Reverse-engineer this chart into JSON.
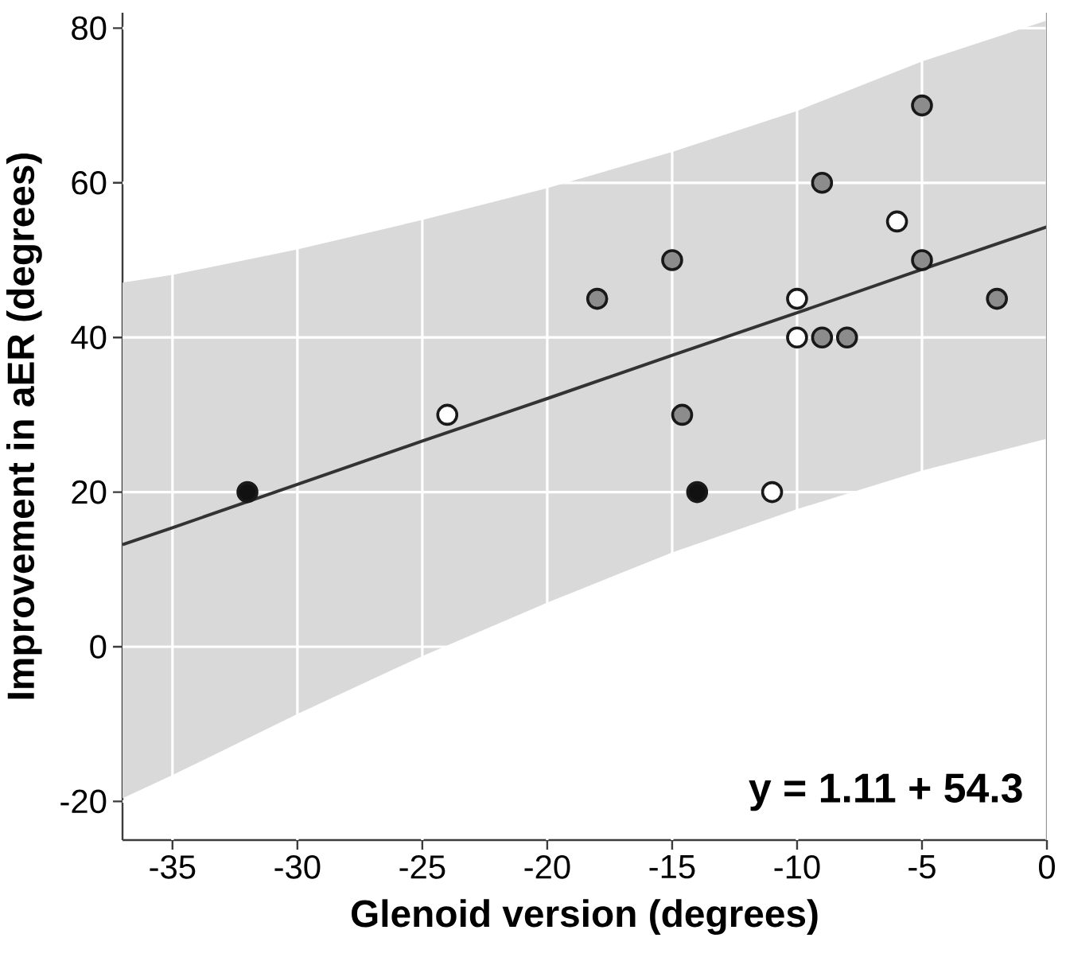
{
  "chart_data": {
    "type": "scatter",
    "xlabel": "Glenoid version (degrees)",
    "ylabel": "Improvement in aER (degrees)",
    "annotations": [
      "y = 1.11 + 54.3"
    ],
    "xlim": [
      -37,
      0
    ],
    "ylim": [
      -25,
      82
    ],
    "xticks": [
      -35,
      -30,
      -25,
      -20,
      -15,
      -10,
      -5,
      0
    ],
    "yticks": [
      -20,
      0,
      20,
      40,
      60,
      80
    ],
    "grid": true,
    "series": [
      {
        "type": "line",
        "marker": "none",
        "color": "#333333",
        "x": [
          -37,
          -35,
          -30,
          -25,
          -20,
          -15,
          -10,
          -5,
          0
        ],
        "values": [
          13.2,
          15.4,
          21.0,
          26.6,
          32.1,
          37.7,
          43.2,
          48.8,
          54.3
        ],
        "lower": [
          -19.6,
          -16.6,
          -8.7,
          -1.2,
          5.7,
          12.2,
          17.8,
          22.8,
          26.9
        ],
        "upper": [
          47.1,
          48.1,
          51.4,
          55.2,
          59.3,
          64.0,
          69.3,
          75.7,
          81.0
        ]
      },
      {
        "marker": "circle",
        "color": "#111111",
        "x": [
          -32,
          -14
        ],
        "values": [
          20,
          20
        ]
      },
      {
        "marker": "circle",
        "color": "#ffffff",
        "x": [
          -24,
          -11,
          -10,
          -10,
          -6
        ],
        "values": [
          30,
          20,
          45,
          40,
          55
        ]
      },
      {
        "marker": "circle",
        "color": "#8c8c8c",
        "x": [
          -18,
          -15,
          -14.6,
          -9,
          -9,
          -8,
          -5,
          -5,
          -2
        ],
        "values": [
          45,
          50,
          30,
          60,
          40,
          40,
          70,
          50,
          45
        ]
      }
    ]
  }
}
